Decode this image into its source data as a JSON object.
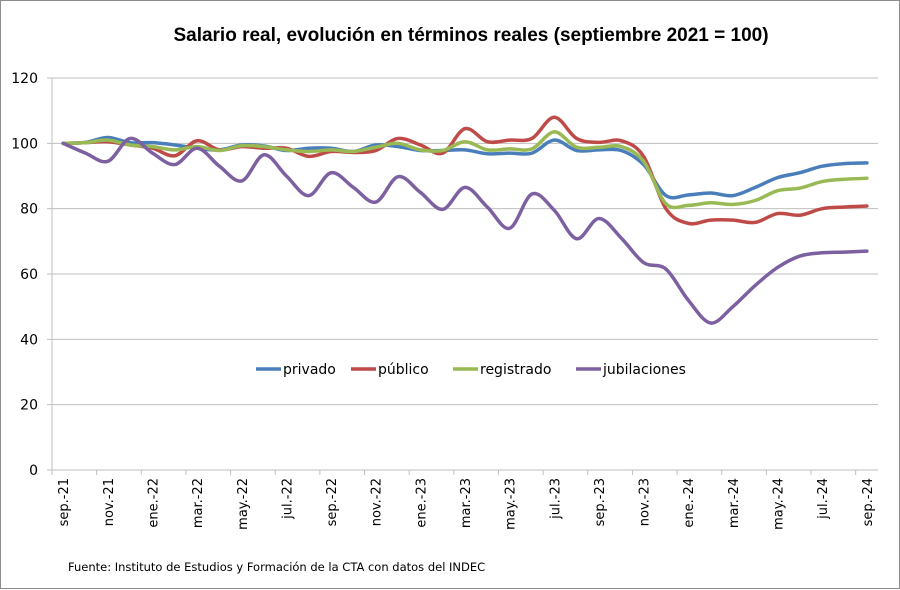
{
  "chart_data": {
    "type": "line",
    "title": "Salario real, evolución en términos reales (septiembre 2021 = 100)",
    "xlabel": "",
    "ylabel": "",
    "ylim": [
      0,
      120
    ],
    "yticks": [
      0,
      20,
      40,
      60,
      80,
      100,
      120
    ],
    "grid": true,
    "legend_position": "center",
    "x": [
      "sep.-21",
      "oct.-21",
      "nov.-21",
      "dic.-21",
      "ene.-22",
      "feb.-22",
      "mar.-22",
      "abr.-22",
      "may.-22",
      "jun.-22",
      "jul.-22",
      "ago.-22",
      "sep.-22",
      "oct.-22",
      "nov.-22",
      "dic.-22",
      "ene.-23",
      "feb.-23",
      "mar.-23",
      "abr.-23",
      "may.-23",
      "jun.-23",
      "jul.-23",
      "ago.-23",
      "sep.-23",
      "oct.-23",
      "nov.-23",
      "dic.-23",
      "ene.-24",
      "feb.-24",
      "mar.-24",
      "abr.-24",
      "may.-24",
      "jun.-24",
      "jul.-24",
      "ago.-24",
      "sep.-24"
    ],
    "xtick_labels": [
      "sep.-21",
      "nov.-21",
      "ene.-22",
      "mar.-22",
      "may.-22",
      "jul.-22",
      "sep.-22",
      "nov.-22",
      "ene.-23",
      "mar.-23",
      "may.-23",
      "jul.-23",
      "sep.-23",
      "nov.-23",
      "ene.-24",
      "mar.-24",
      "may.-24",
      "jul.-24",
      "sep.-24"
    ],
    "series": [
      {
        "name": "privado",
        "color": "#4a7ebb",
        "values": [
          100,
          100.3,
          101.8,
          100.2,
          100.2,
          99.5,
          98.5,
          98.0,
          99.5,
          99.2,
          97.8,
          98.5,
          98.5,
          97.5,
          99.5,
          99.0,
          97.8,
          97.8,
          98.0,
          96.8,
          97.0,
          97.0,
          101.0,
          97.8,
          98.0,
          97.8,
          93.5,
          84.0,
          84.2,
          84.8,
          84.0,
          86.5,
          89.5,
          91.0,
          93.0,
          93.8,
          94.0
        ]
      },
      {
        "name": "público",
        "color": "#be4b48",
        "values": [
          100,
          100.2,
          100.5,
          99.5,
          98.5,
          96.2,
          100.8,
          98.0,
          99.0,
          98.5,
          98.5,
          96.0,
          97.5,
          97.2,
          97.8,
          101.5,
          99.5,
          97.0,
          104.5,
          100.5,
          101.0,
          101.5,
          108.0,
          101.5,
          100.3,
          100.8,
          96.0,
          80.0,
          75.5,
          76.5,
          76.5,
          75.8,
          78.5,
          78.0,
          80.0,
          80.5,
          80.8
        ]
      },
      {
        "name": "registrado",
        "color": "#98b954",
        "values": [
          100,
          100.2,
          101.0,
          99.5,
          99.0,
          98.0,
          99.0,
          97.8,
          99.3,
          99.0,
          98.0,
          97.5,
          98.0,
          97.5,
          98.8,
          100.0,
          98.0,
          97.8,
          100.5,
          98.0,
          98.3,
          98.3,
          103.5,
          98.8,
          98.8,
          99.0,
          94.5,
          81.5,
          81.0,
          81.8,
          81.3,
          82.5,
          85.5,
          86.3,
          88.3,
          89.0,
          89.3
        ]
      },
      {
        "name": "jubilaciones",
        "color": "#7d60a0",
        "values": [
          100,
          97.0,
          94.5,
          101.5,
          97.0,
          93.5,
          98.5,
          93.0,
          88.5,
          96.5,
          90.0,
          84.0,
          91.0,
          86.5,
          82.0,
          89.8,
          85.0,
          79.8,
          86.5,
          80.5,
          74.0,
          84.5,
          79.5,
          70.8,
          77.0,
          71.0,
          63.5,
          61.5,
          52.0,
          45.0,
          50.0,
          56.5,
          62.0,
          65.5,
          66.5,
          66.7,
          67.0
        ]
      }
    ],
    "source": "Fuente: Instituto de Estudios y Formación de la CTA con datos del INDEC"
  }
}
